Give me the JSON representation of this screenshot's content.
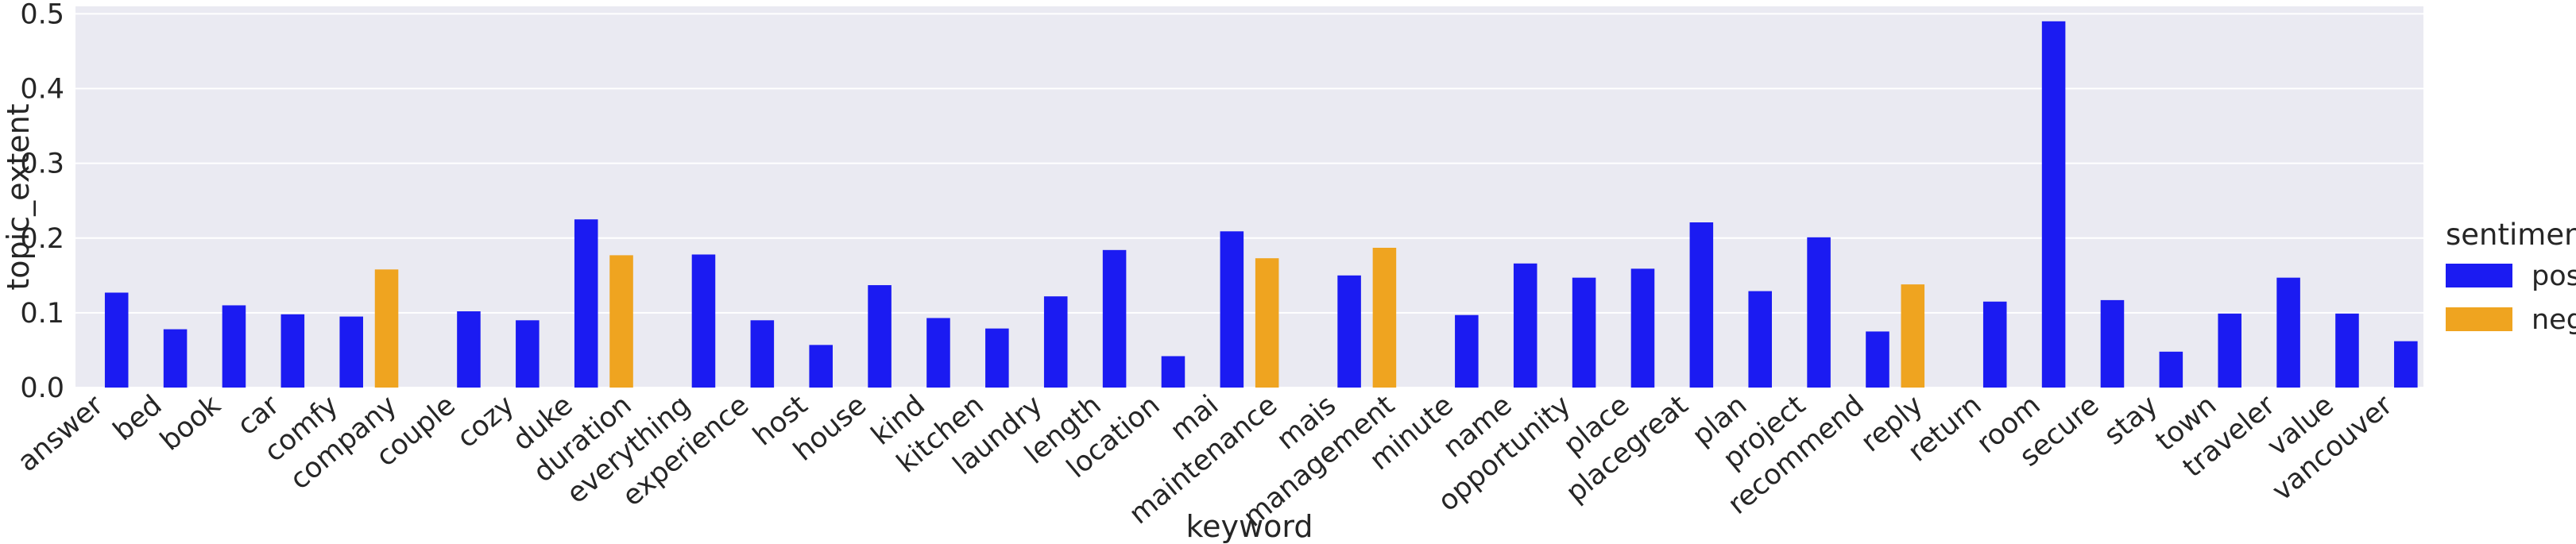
{
  "chart_data": {
    "type": "bar",
    "xlabel": "keyword",
    "ylabel": "topic_extent",
    "ylim": [
      0,
      0.51
    ],
    "yticks": [
      0.0,
      0.1,
      0.2,
      0.3,
      0.4,
      0.5
    ],
    "ytick_labels": [
      "0.0",
      "0.1",
      "0.2",
      "0.3",
      "0.4",
      "0.5"
    ],
    "grid": true,
    "legend": {
      "title": "sentiment",
      "placement": "right"
    },
    "categories": [
      "answer",
      "bed",
      "book",
      "car",
      "comfy",
      "company",
      "couple",
      "cozy",
      "duke",
      "duration",
      "everything",
      "experience",
      "host",
      "house",
      "kind",
      "kitchen",
      "laundry",
      "length",
      "location",
      "mai",
      "maintenance",
      "mais",
      "management",
      "minute",
      "name",
      "opportunity",
      "place",
      "placegreat",
      "plan",
      "project",
      "recommend",
      "reply",
      "return",
      "room",
      "secure",
      "stay",
      "town",
      "traveler",
      "value",
      "vancouver"
    ],
    "series": [
      {
        "name": "pos",
        "color": "#1b1bf2",
        "values": [
          0.127,
          0.078,
          0.11,
          0.098,
          0.095,
          null,
          0.102,
          0.09,
          0.225,
          null,
          0.178,
          0.09,
          0.057,
          0.137,
          0.093,
          0.079,
          0.122,
          0.184,
          0.042,
          0.209,
          null,
          0.15,
          null,
          0.097,
          0.166,
          0.147,
          0.159,
          0.221,
          0.129,
          0.201,
          0.075,
          null,
          0.115,
          0.49,
          0.117,
          0.048,
          0.099,
          0.147,
          0.099,
          0.062
        ]
      },
      {
        "name": "neg",
        "color": "#efa420",
        "values": [
          null,
          null,
          null,
          null,
          null,
          0.158,
          null,
          null,
          null,
          0.177,
          null,
          null,
          null,
          null,
          null,
          null,
          null,
          null,
          null,
          null,
          0.173,
          null,
          0.187,
          null,
          null,
          null,
          null,
          null,
          null,
          null,
          null,
          0.138,
          null,
          null,
          null,
          null,
          null,
          null,
          null,
          null
        ]
      }
    ]
  }
}
